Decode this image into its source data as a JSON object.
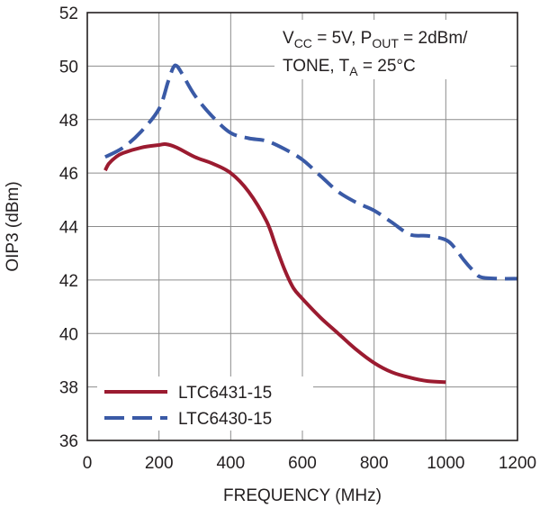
{
  "chart_data": {
    "type": "line",
    "xlabel": "FREQUENCY (MHz)",
    "ylabel": "OIP3 (dBm)",
    "xlim": [
      0,
      1200
    ],
    "ylim": [
      36,
      52
    ],
    "x_ticks": [
      0,
      200,
      400,
      600,
      800,
      1000,
      1200
    ],
    "y_ticks": [
      36,
      38,
      40,
      42,
      44,
      46,
      48,
      50,
      52
    ],
    "grid": true,
    "legend_position": "bottom-left",
    "annotation": {
      "line1": {
        "v": "V",
        "cc": "CC",
        "mid": " = 5V, P",
        "out": "OUT",
        "end": " = 2dBm/"
      },
      "line2": {
        "start": "TONE, T",
        "a": "A",
        "end": " = 25°C"
      }
    },
    "series": [
      {
        "name": "LTC6431-15",
        "color": "#9b1b30",
        "style": "solid",
        "x": [
          50,
          60,
          80,
          100,
          150,
          200,
          220,
          250,
          300,
          350,
          400,
          450,
          500,
          525,
          550,
          575,
          600,
          650,
          700,
          750,
          800,
          850,
          900,
          950,
          1000
        ],
        "y": [
          46.1,
          46.35,
          46.6,
          46.75,
          46.95,
          47.05,
          47.08,
          46.95,
          46.6,
          46.35,
          46.0,
          45.3,
          44.2,
          43.3,
          42.4,
          41.7,
          41.3,
          40.6,
          40.0,
          39.4,
          38.9,
          38.55,
          38.35,
          38.22,
          38.18
        ]
      },
      {
        "name": "LTC6430-15",
        "color": "#3a5aa6",
        "style": "dashed",
        "x": [
          50,
          100,
          150,
          200,
          225,
          240,
          250,
          265,
          300,
          350,
          400,
          450,
          500,
          550,
          600,
          650,
          700,
          750,
          800,
          850,
          900,
          950,
          1000,
          1025,
          1050,
          1080,
          1100,
          1150,
          1200
        ],
        "y": [
          46.6,
          46.95,
          47.55,
          48.4,
          49.4,
          49.95,
          50.0,
          49.7,
          48.9,
          48.1,
          47.5,
          47.3,
          47.2,
          46.9,
          46.5,
          45.9,
          45.3,
          44.9,
          44.6,
          44.15,
          43.7,
          43.65,
          43.5,
          43.2,
          42.75,
          42.3,
          42.1,
          42.05,
          42.05
        ]
      }
    ]
  }
}
